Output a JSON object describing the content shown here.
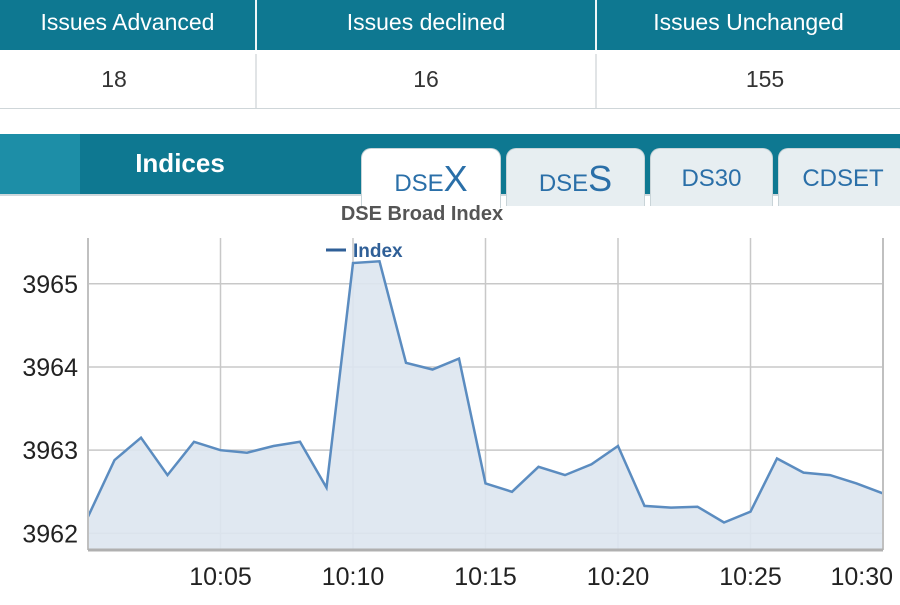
{
  "stats": {
    "headers": [
      "Issues Advanced",
      "Issues declined",
      "Issues Unchanged"
    ],
    "values": [
      "18",
      "16",
      "155"
    ]
  },
  "indices": {
    "title": "Indices",
    "tabs": [
      {
        "prefix": "DSE",
        "suffix": "X",
        "active": true
      },
      {
        "prefix": "DSE",
        "suffix": "S",
        "active": false
      },
      {
        "label": "DS30",
        "active": false
      },
      {
        "label": "CDSET",
        "active": false
      }
    ]
  },
  "colors": {
    "header_bg": "#0e7891",
    "line": "#5b8cc0",
    "area": "#dde6f0",
    "tab_text": "#2a6fa8"
  },
  "chart_data": {
    "type": "area",
    "title": "DSE Broad Index",
    "legend": {
      "label": "Index",
      "placement": "top-center"
    },
    "x_ticks": [
      "10:05",
      "10:10",
      "10:15",
      "10:20",
      "10:25",
      "10:30"
    ],
    "y_ticks": [
      3962,
      3963,
      3964,
      3965
    ],
    "xlim_minutes": [
      60,
      90
    ],
    "ylim": [
      3961.8,
      3965.55
    ],
    "grid": true,
    "series": [
      {
        "name": "Index",
        "x": [
          "10:00",
          "10:01",
          "10:02",
          "10:03",
          "10:04",
          "10:05",
          "10:06",
          "10:07",
          "10:08",
          "10:09",
          "10:10",
          "10:11",
          "10:12",
          "10:13",
          "10:14",
          "10:15",
          "10:16",
          "10:17",
          "10:18",
          "10:19",
          "10:20",
          "10:21",
          "10:22",
          "10:23",
          "10:24",
          "10:25",
          "10:26",
          "10:27",
          "10:28",
          "10:29",
          "10:30"
        ],
        "y": [
          3962.2,
          3962.88,
          3963.15,
          3962.7,
          3963.1,
          3963.0,
          3962.97,
          3963.05,
          3963.1,
          3962.55,
          3965.25,
          3965.27,
          3964.05,
          3963.97,
          3964.1,
          3962.6,
          3962.5,
          3962.8,
          3962.7,
          3962.83,
          3963.05,
          3962.33,
          3962.31,
          3962.32,
          3962.13,
          3962.26,
          3962.9,
          3962.73,
          3962.7,
          3962.6,
          3962.48
        ]
      }
    ]
  }
}
